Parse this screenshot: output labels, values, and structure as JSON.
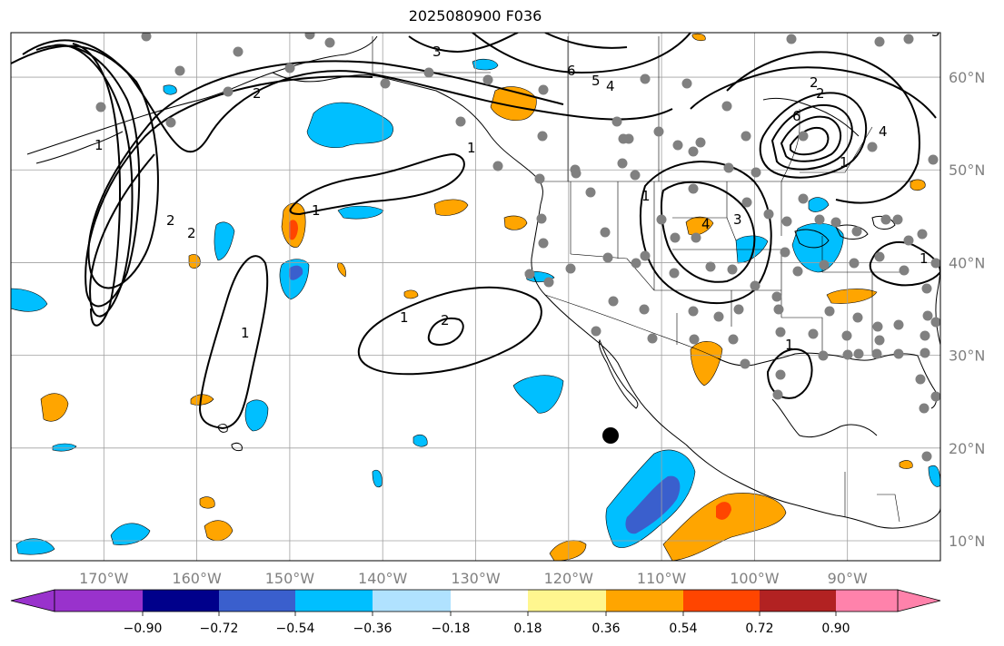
{
  "title": "2025080900 F036",
  "lat_labels": [
    {
      "text": "60°N",
      "lat": 60
    },
    {
      "text": "50°N",
      "lat": 50
    },
    {
      "text": "40°N",
      "lat": 40
    },
    {
      "text": "30°N",
      "lat": 30
    },
    {
      "text": "20°N",
      "lat": 20
    },
    {
      "text": "10°N",
      "lat": 10
    }
  ],
  "lon_labels": [
    {
      "text": "170°W",
      "lon": -170
    },
    {
      "text": "160°W",
      "lon": -160
    },
    {
      "text": "150°W",
      "lon": -150
    },
    {
      "text": "140°W",
      "lon": -140
    },
    {
      "text": "130°W",
      "lon": -130
    },
    {
      "text": "120°W",
      "lon": -120
    },
    {
      "text": "110°W",
      "lon": -110
    },
    {
      "text": "100°W",
      "lon": -100
    },
    {
      "text": "90°W",
      "lon": -90
    }
  ],
  "colorbar": {
    "colors": [
      "#9932cc",
      "#00008b",
      "#3a5fcd",
      "#00bfff",
      "#b0e2ff",
      "#ffffff",
      "#fff68f",
      "#ffa500",
      "#ff4500",
      "#b22222",
      "#ff82ab"
    ],
    "ticks": [
      "−0.90",
      "−0.72",
      "−0.54",
      "−0.36",
      "−0.18",
      "0.18",
      "0.36",
      "0.54",
      "0.72",
      "0.90"
    ]
  },
  "contour_labels": [
    "3",
    "6",
    "5",
    "4",
    "2",
    "1",
    "1",
    "2",
    "1",
    "1",
    "2",
    "1",
    "2",
    "3",
    "4",
    "6",
    "1",
    "1",
    "1",
    "2",
    "1",
    "4",
    "3",
    "2"
  ],
  "colors": {
    "gridline": "#a0a0a0",
    "coast": "#000000",
    "station": "#808080",
    "cyan": "#00bfff",
    "orange": "#ffa500",
    "red": "#ff4500",
    "blue": "#3a5fcd"
  }
}
